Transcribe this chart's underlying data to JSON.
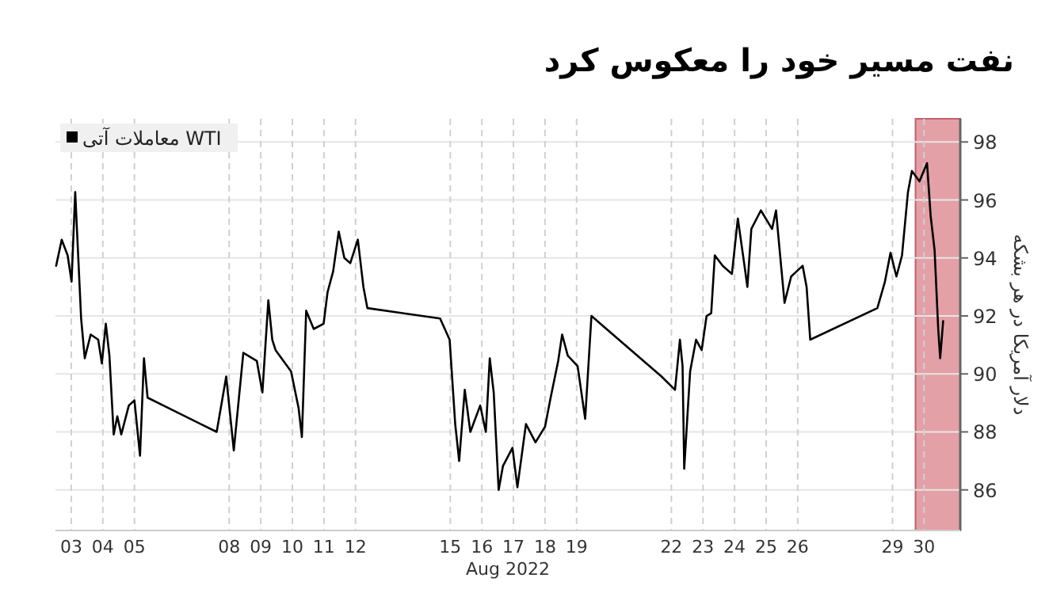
{
  "chart_data": {
    "type": "line",
    "title": "نفت مسیر خود را معکوس کرد",
    "xlabel": "Aug 2022",
    "ylabel": "دلار آمریکا در هر بشکه",
    "xlim": [
      "2022-08-03T00:00",
      "2022-08-31T15:30"
    ],
    "ylim": [
      84.6,
      98.8
    ],
    "xticks": [
      {
        "value": "2022-08-03T12:00",
        "label": "03"
      },
      {
        "value": "2022-08-04T12:00",
        "label": "04"
      },
      {
        "value": "2022-08-05T12:00",
        "label": "05"
      },
      {
        "value": "2022-08-08T12:00",
        "label": "08"
      },
      {
        "value": "2022-08-09T12:00",
        "label": "09"
      },
      {
        "value": "2022-08-10T12:00",
        "label": "10"
      },
      {
        "value": "2022-08-11T12:00",
        "label": "11"
      },
      {
        "value": "2022-08-12T12:00",
        "label": "12"
      },
      {
        "value": "2022-08-15T12:00",
        "label": "15"
      },
      {
        "value": "2022-08-16T12:00",
        "label": "16"
      },
      {
        "value": "2022-08-17T12:00",
        "label": "17"
      },
      {
        "value": "2022-08-18T12:00",
        "label": "18"
      },
      {
        "value": "2022-08-19T12:00",
        "label": "19"
      },
      {
        "value": "2022-08-22T12:00",
        "label": "22"
      },
      {
        "value": "2022-08-23T12:00",
        "label": "23"
      },
      {
        "value": "2022-08-24T12:00",
        "label": "24"
      },
      {
        "value": "2022-08-25T12:00",
        "label": "25"
      },
      {
        "value": "2022-08-26T12:00",
        "label": "26"
      },
      {
        "value": "2022-08-29T12:00",
        "label": "29"
      },
      {
        "value": "2022-08-30T12:00",
        "label": "30"
      }
    ],
    "yticks": [
      86,
      88,
      90,
      92,
      94,
      96,
      98
    ],
    "grid": true,
    "legend": "top left",
    "bands": [
      {
        "axis": "x",
        "from": "2022-08-30T05:30",
        "to": "2022-08-31T15:30",
        "color": "#e3a0a6"
      }
    ],
    "series": [
      {
        "name": "معاملات آتی WTI",
        "color": "#000000",
        "x": [
          "2022-08-03T00:30",
          "2022-08-03T04:45",
          "2022-08-03T09:15",
          "2022-08-03T12:15",
          "2022-08-03T15:00",
          "2022-08-03T17:15",
          "2022-08-03T19:30",
          "2022-08-03T22:15",
          "2022-08-04T02:45",
          "2022-08-04T08:30",
          "2022-08-04T11:15",
          "2022-08-04T14:15",
          "2022-08-04T17:00",
          "2022-08-04T20:15",
          "2022-08-04T23:00",
          "2022-08-05T02:00",
          "2022-08-05T07:45",
          "2022-08-05T12:00",
          "2022-08-05T16:15",
          "2022-08-05T19:15",
          "2022-08-05T22:00",
          "2022-08-08T02:30",
          "2022-08-08T09:45",
          "2022-08-08T15:30",
          "2022-08-08T22:45",
          "2022-08-09T09:00",
          "2022-08-09T13:15",
          "2022-08-09T17:45",
          "2022-08-09T20:45",
          "2022-08-09T23:15",
          "2022-08-10T11:00",
          "2022-08-10T16:45",
          "2022-08-10T19:15",
          "2022-08-10T22:30",
          "2022-08-11T04:15",
          "2022-08-11T11:45",
          "2022-08-11T14:45",
          "2022-08-11T19:00",
          "2022-08-11T23:15",
          "2022-08-12T03:30",
          "2022-08-12T08:00",
          "2022-08-12T13:45",
          "2022-08-12T18:00",
          "2022-08-12T21:00",
          "2022-08-15T04:15",
          "2022-08-15T11:30",
          "2022-08-15T15:45",
          "2022-08-15T18:45",
          "2022-08-15T23:00",
          "2022-08-16T03:15",
          "2022-08-16T10:45",
          "2022-08-16T15:00",
          "2022-08-16T18:00",
          "2022-08-16T21:00",
          "2022-08-17T00:45",
          "2022-08-17T04:00",
          "2022-08-17T11:15",
          "2022-08-17T15:00",
          "2022-08-17T21:30",
          "2022-08-18T04:45",
          "2022-08-18T12:00",
          "2022-08-18T16:15",
          "2022-08-18T22:00",
          "2022-08-19T01:00",
          "2022-08-19T05:15",
          "2022-08-19T12:45",
          "2022-08-19T18:30",
          "2022-08-19T23:15",
          "2022-08-22T04:30",
          "2022-08-22T14:45",
          "2022-08-22T18:30",
          "2022-08-22T20:30",
          "2022-08-22T21:45",
          "2022-08-23T02:15",
          "2022-08-23T06:45",
          "2022-08-23T11:00",
          "2022-08-23T14:45",
          "2022-08-23T18:15",
          "2022-08-23T21:00",
          "2022-08-24T03:00",
          "2022-08-24T10:00",
          "2022-08-24T14:30",
          "2022-08-24T19:00",
          "2022-08-24T21:45",
          "2022-08-25T00:45",
          "2022-08-25T08:00",
          "2022-08-25T16:30",
          "2022-08-25T19:30",
          "2022-08-25T22:15",
          "2022-08-26T02:00",
          "2022-08-26T07:00",
          "2022-08-26T15:45",
          "2022-08-26T18:45",
          "2022-08-26T21:30",
          "2022-08-29T00:30",
          "2022-08-29T06:15",
          "2022-08-29T10:30",
          "2022-08-29T15:00",
          "2022-08-29T19:15",
          "2022-08-29T23:45",
          "2022-08-30T02:45",
          "2022-08-30T08:30",
          "2022-08-30T14:15",
          "2022-08-30T17:00",
          "2022-08-30T20:00",
          "2022-08-30T22:45",
          "2022-08-31T00:15",
          "2022-08-31T02:30"
        ],
        "values": [
          93.73,
          94.63,
          94.09,
          93.18,
          96.27,
          94.09,
          91.91,
          90.54,
          91.36,
          91.18,
          90.36,
          91.73,
          90.63,
          87.91,
          88.54,
          87.91,
          88.91,
          89.09,
          87.18,
          90.54,
          89.18,
          88.0,
          89.91,
          87.36,
          90.73,
          90.45,
          89.36,
          92.54,
          91.18,
          90.82,
          90.09,
          88.82,
          87.82,
          92.18,
          91.55,
          91.73,
          92.82,
          93.54,
          94.91,
          94.0,
          93.82,
          94.63,
          93.0,
          92.27,
          91.91,
          91.18,
          88.27,
          87.0,
          89.45,
          88.0,
          88.91,
          88.0,
          90.54,
          89.36,
          86.0,
          86.82,
          87.45,
          86.09,
          88.27,
          87.64,
          88.18,
          89.18,
          90.45,
          91.36,
          90.63,
          90.27,
          88.45,
          92.0,
          89.91,
          89.45,
          91.18,
          90.27,
          86.73,
          90.09,
          91.18,
          90.82,
          92.0,
          92.09,
          94.09,
          93.73,
          93.45,
          95.36,
          93.91,
          93.0,
          95.0,
          95.64,
          95.0,
          95.64,
          94.27,
          92.45,
          93.36,
          93.73,
          93.0,
          91.18,
          92.27,
          93.18,
          94.18,
          93.36,
          94.09,
          96.27,
          97.0,
          96.64,
          97.27,
          95.45,
          94.27,
          91.55,
          90.54,
          91.82
        ]
      }
    ]
  }
}
